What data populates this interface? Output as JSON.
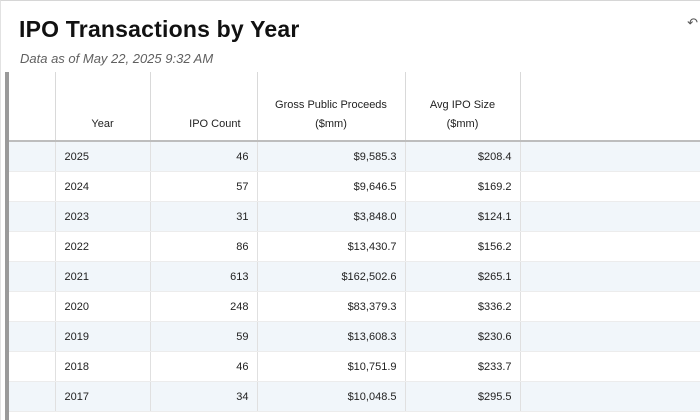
{
  "report": {
    "title": "IPO Transactions by Year",
    "subtitle": "Data as of May 22, 2025 9:32 AM",
    "corner_icon": "refresh-icon"
  },
  "table": {
    "headers": {
      "year": "Year",
      "count": "IPO Count",
      "gross_line1": "Gross Public Proceeds",
      "gross_line2": "($mm)",
      "avg_line1": "Avg IPO Size",
      "avg_line2": "($mm)"
    },
    "rows": [
      {
        "year": "2025",
        "count": "46",
        "gross": "$9,585.3",
        "avg": "$208.4"
      },
      {
        "year": "2024",
        "count": "57",
        "gross": "$9,646.5",
        "avg": "$169.2"
      },
      {
        "year": "2023",
        "count": "31",
        "gross": "$3,848.0",
        "avg": "$124.1"
      },
      {
        "year": "2022",
        "count": "86",
        "gross": "$13,430.7",
        "avg": "$156.2"
      },
      {
        "year": "2021",
        "count": "613",
        "gross": "$162,502.6",
        "avg": "$265.1"
      },
      {
        "year": "2020",
        "count": "248",
        "gross": "$83,379.3",
        "avg": "$336.2"
      },
      {
        "year": "2019",
        "count": "59",
        "gross": "$13,608.3",
        "avg": "$230.6"
      },
      {
        "year": "2018",
        "count": "46",
        "gross": "$10,751.9",
        "avg": "$233.7"
      },
      {
        "year": "2017",
        "count": "34",
        "gross": "$10,048.5",
        "avg": "$295.5"
      }
    ]
  }
}
